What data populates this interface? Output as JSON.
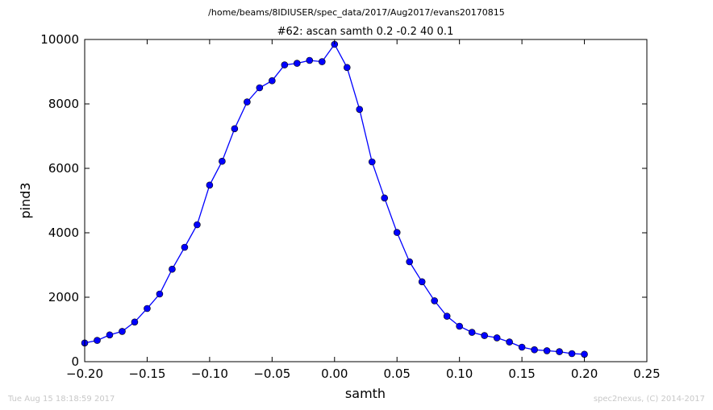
{
  "chart_data": {
    "type": "line",
    "suptitle": "/home/beams/8IDIUSER/spec_data/2017/Aug2017/evans20170815",
    "title": "#62: ascan  samth 0.2 -0.2  40 0.1",
    "xlabel": "samth",
    "ylabel": "pind3",
    "xlim": [
      -0.2,
      0.25
    ],
    "ylim": [
      0,
      10000
    ],
    "xticks": [
      -0.2,
      -0.15,
      -0.1,
      -0.05,
      0.0,
      0.05,
      0.1,
      0.15,
      0.2,
      0.25
    ],
    "xtick_labels": [
      "−0.20",
      "−0.15",
      "−0.10",
      "−0.05",
      "0.00",
      "0.05",
      "0.10",
      "0.15",
      "0.20",
      "0.25"
    ],
    "yticks": [
      0,
      2000,
      4000,
      6000,
      8000,
      10000
    ],
    "ytick_labels": [
      "0",
      "2000",
      "4000",
      "6000",
      "8000",
      "10000"
    ],
    "grid": false,
    "series": [
      {
        "color": "#0000ff",
        "marker": "circle",
        "x": [
          -0.2,
          -0.19,
          -0.18,
          -0.17,
          -0.16,
          -0.15,
          -0.14,
          -0.13,
          -0.12,
          -0.11,
          -0.1,
          -0.09,
          -0.08,
          -0.07,
          -0.06,
          -0.05,
          -0.04,
          -0.03,
          -0.02,
          -0.01,
          0.0,
          0.01,
          0.02,
          0.03,
          0.04,
          0.05,
          0.06,
          0.07,
          0.08,
          0.09,
          0.1,
          0.11,
          0.12,
          0.13,
          0.14,
          0.15,
          0.16,
          0.17,
          0.18,
          0.19,
          0.2
        ],
        "y": [
          580,
          660,
          830,
          940,
          1230,
          1650,
          2100,
          2870,
          3550,
          4250,
          5480,
          6220,
          7230,
          8060,
          8500,
          8720,
          9210,
          9260,
          9350,
          9310,
          9850,
          9130,
          7830,
          6200,
          5080,
          4010,
          3100,
          2480,
          1890,
          1410,
          1100,
          910,
          810,
          740,
          610,
          450,
          370,
          340,
          310,
          250,
          230
        ]
      }
    ]
  },
  "footer": {
    "timestamp": "Tue Aug 15 18:18:59 2017",
    "credit": "spec2nexus, (C) 2014-2017"
  }
}
